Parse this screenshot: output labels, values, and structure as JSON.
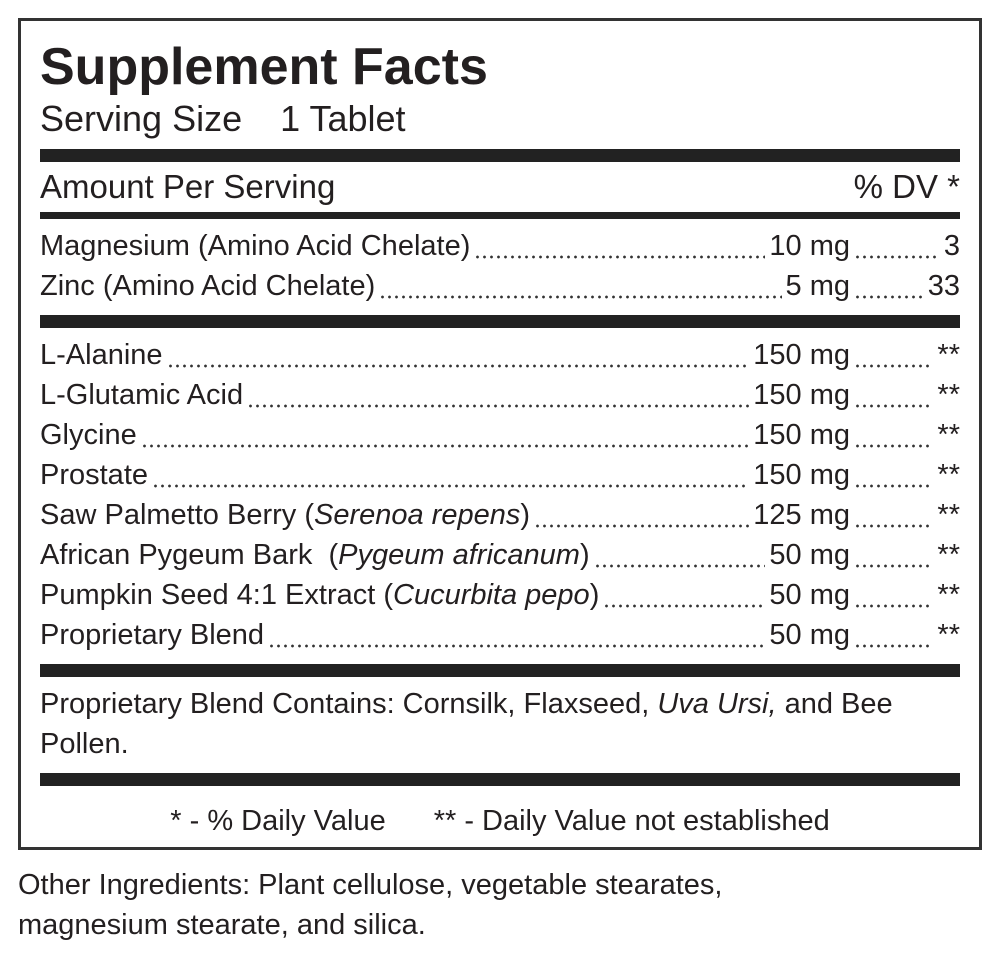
{
  "title": "Supplement Facts",
  "serving_size": {
    "label": "Serving Size",
    "value": "1 Tablet"
  },
  "header": {
    "amount": "Amount Per Serving",
    "dv": "% DV *"
  },
  "groups": [
    {
      "rows": [
        {
          "name": [
            {
              "text": "Magnesium (Amino Acid Chelate)",
              "italic": false
            }
          ],
          "amount": "10 mg",
          "dv": "3"
        },
        {
          "name": [
            {
              "text": "Zinc (Amino Acid Chelate)",
              "italic": false
            }
          ],
          "amount": "5 mg",
          "dv": "33"
        }
      ]
    },
    {
      "rows": [
        {
          "name": [
            {
              "text": "L-Alanine",
              "italic": false
            }
          ],
          "amount": "150 mg",
          "dv": "**"
        },
        {
          "name": [
            {
              "text": "L-Glutamic Acid",
              "italic": false
            }
          ],
          "amount": "150 mg",
          "dv": "**"
        },
        {
          "name": [
            {
              "text": "Glycine",
              "italic": false
            }
          ],
          "amount": "150 mg",
          "dv": "**"
        },
        {
          "name": [
            {
              "text": "Prostate",
              "italic": false
            }
          ],
          "amount": "150 mg",
          "dv": "**"
        },
        {
          "name": [
            {
              "text": "Saw Palmetto Berry (",
              "italic": false
            },
            {
              "text": "Serenoa repens",
              "italic": true
            },
            {
              "text": ")",
              "italic": false
            }
          ],
          "amount": "125 mg",
          "dv": "**"
        },
        {
          "name": [
            {
              "text": "African Pygeum Bark  (",
              "italic": false
            },
            {
              "text": "Pygeum africanum",
              "italic": true
            },
            {
              "text": ")",
              "italic": false
            }
          ],
          "amount": "50 mg",
          "dv": "**"
        },
        {
          "name": [
            {
              "text": "Pumpkin Seed 4:1 Extract (",
              "italic": false
            },
            {
              "text": "Cucurbita pepo",
              "italic": true
            },
            {
              "text": ")",
              "italic": false
            }
          ],
          "amount": "50 mg",
          "dv": "**"
        },
        {
          "name": [
            {
              "text": "Proprietary Blend",
              "italic": false
            }
          ],
          "amount": "50 mg",
          "dv": "**"
        }
      ]
    }
  ],
  "blend": [
    {
      "text": "Proprietary Blend Contains: Cornsilk, Flaxseed, ",
      "italic": false
    },
    {
      "text": "Uva Ursi,",
      "italic": true
    },
    {
      "text": " and Bee Pollen.",
      "italic": false
    }
  ],
  "footnotes": [
    "* - % Daily Value",
    "** - Daily Value not established"
  ],
  "other_ingredients": "Other Ingredients: Plant cellulose, vegetable stearates, magnesium stearate, and silica."
}
